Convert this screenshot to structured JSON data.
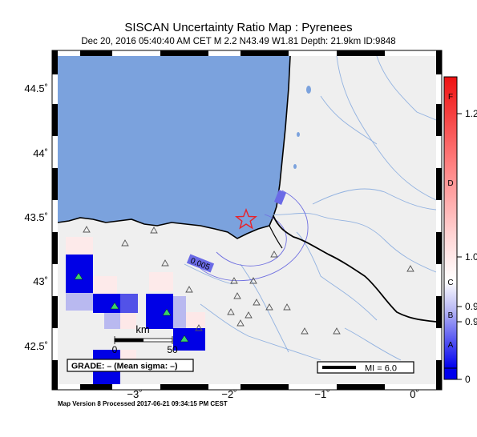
{
  "title": "SISCAN Uncertainty Ratio Map : Pyrenees",
  "subtitle": "Dec 20, 2016 05:40:40 AM CET   M 2.2   N43.49 W1.81   Depth: 21.9km   ID:9848",
  "footer": "Map Version 8 Processed 2017-06-21 09:34:15 PM CEST",
  "axes": {
    "y_ticks": [
      "44.5˚",
      "44˚",
      "43.5˚",
      "43˚",
      "42.5˚"
    ],
    "x_ticks": [
      "−3˚",
      "−2˚",
      "−1˚",
      "0˚"
    ]
  },
  "contour_label": "0.005",
  "scale_bar": {
    "title": "km",
    "start": "0",
    "end": "50"
  },
  "grade_box": "GRADE: – (Mean sigma: –)",
  "mi_legend": "MI = 6.0",
  "colorbar": {
    "letters": [
      "F",
      "D",
      "C",
      "B",
      "A"
    ],
    "values": [
      "1.2",
      "1.0",
      "0.9",
      "0.9",
      "0"
    ]
  },
  "colors": {
    "ocean": "#7ba2dd",
    "land": "#efefef",
    "river": "#92b2e0",
    "epicenter": "#e8222a",
    "cell_strong": "#0000e6",
    "station": "#3bd06a"
  }
}
